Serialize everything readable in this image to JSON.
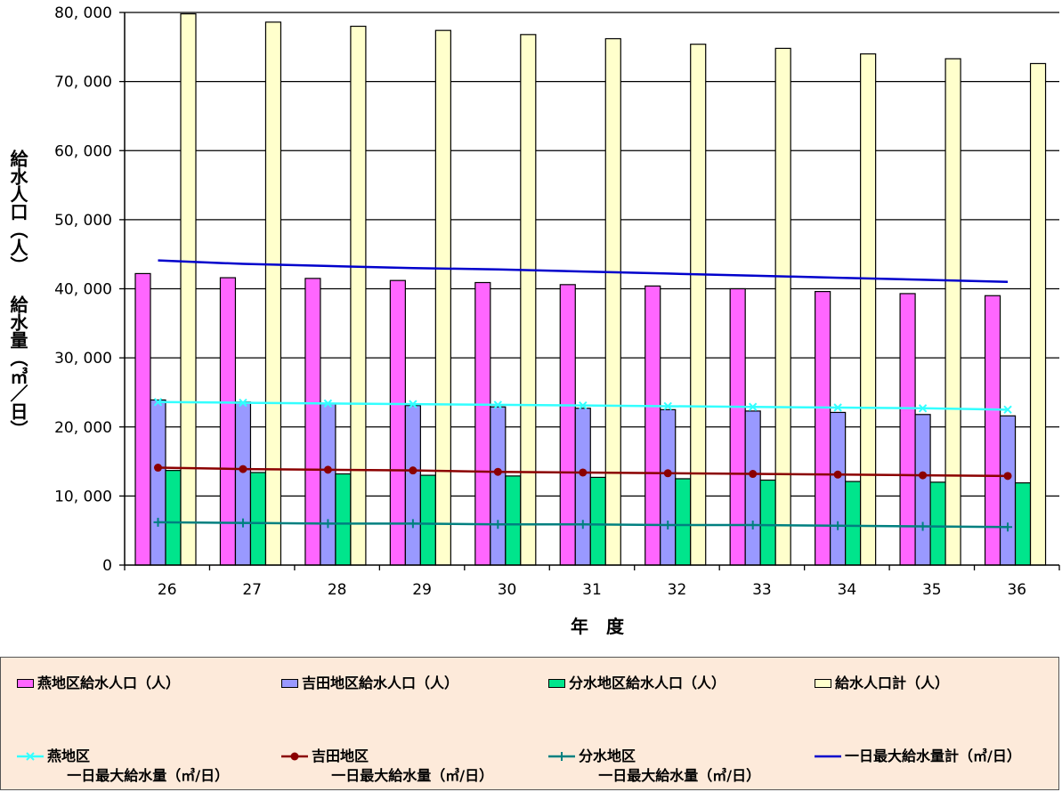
{
  "chart_data": {
    "type": "bar",
    "xlabel": "年　度",
    "ylabel": "給水人口（人） 給水量（㎥／日）",
    "categories": [
      "26",
      "27",
      "28",
      "29",
      "30",
      "31",
      "32",
      "33",
      "34",
      "35",
      "36"
    ],
    "ylim": [
      0,
      80000
    ],
    "yticks": [
      "0",
      "10, 000",
      "20, 000",
      "30, 000",
      "40, 000",
      "50, 000",
      "60, 000",
      "70, 000",
      "80, 000"
    ],
    "grid": true,
    "legend_position": "bottom",
    "bar_series": [
      {
        "name": "燕地区給水人口（人）",
        "color": "#ff66ff",
        "values": [
          42200,
          41600,
          41500,
          41200,
          40900,
          40600,
          40400,
          40000,
          39600,
          39300,
          39000
        ]
      },
      {
        "name": "吉田地区給水人口（人）",
        "color": "#9999ff",
        "values": [
          23900,
          23600,
          23400,
          23100,
          22900,
          22700,
          22500,
          22300,
          22100,
          21800,
          21600
        ]
      },
      {
        "name": "分水地区給水人口（人）",
        "color": "#00e58c",
        "values": [
          13700,
          13400,
          13200,
          13000,
          12900,
          12700,
          12500,
          12300,
          12100,
          12000,
          11900
        ]
      },
      {
        "name": "給水人口計（人）",
        "color": "#ffffcc",
        "values": [
          79800,
          78600,
          78000,
          77400,
          76800,
          76200,
          75400,
          74800,
          74000,
          73300,
          72600
        ]
      }
    ],
    "line_series": [
      {
        "name": "燕地区\n一日最大給水量（㎥/日）",
        "color": "#33ffff",
        "marker": "x",
        "values": [
          23600,
          23500,
          23400,
          23300,
          23200,
          23100,
          23000,
          22900,
          22800,
          22700,
          22500
        ]
      },
      {
        "name": "吉田地区\n一日最大給水量（㎥/日）",
        "color": "#8b0000",
        "marker": "circle",
        "values": [
          14100,
          13900,
          13800,
          13700,
          13500,
          13400,
          13300,
          13200,
          13100,
          13000,
          12900
        ]
      },
      {
        "name": "分水地区\n一日最大給水量（㎥/日）",
        "color": "#008080",
        "marker": "plus",
        "values": [
          6200,
          6100,
          6000,
          6000,
          5900,
          5900,
          5800,
          5800,
          5700,
          5600,
          5500
        ]
      },
      {
        "name": "一日最大給水量計（㎥/日）",
        "color": "#0000cc",
        "marker": "none",
        "values": [
          44100,
          43600,
          43300,
          43000,
          42800,
          42500,
          42200,
          41900,
          41600,
          41300,
          41000
        ]
      }
    ]
  }
}
